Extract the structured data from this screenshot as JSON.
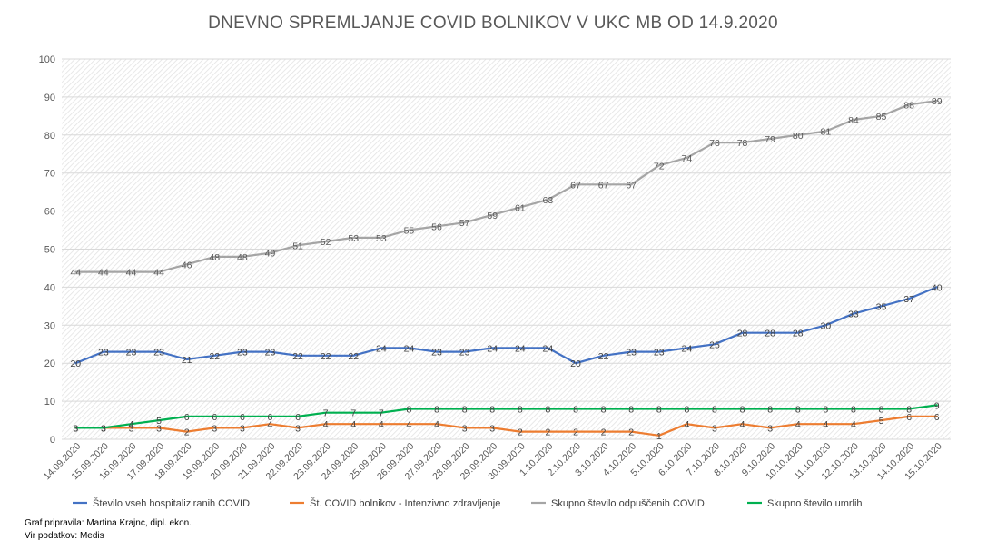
{
  "chart_data": {
    "type": "line",
    "title": "DNEVNO SPREMLJANJE COVID BOLNIKOV V UKC MB OD 14.9.2020",
    "xlabel": "",
    "ylabel": "",
    "ylim": [
      0,
      100
    ],
    "yticks": [
      0,
      10,
      20,
      30,
      40,
      50,
      60,
      70,
      80,
      90,
      100
    ],
    "grid": true,
    "legend_position": "bottom",
    "categories": [
      "14.09.2020",
      "15.09.2020",
      "16.09.2020",
      "17.09.2020",
      "18.09.2020",
      "19.09.2020",
      "20.09.2020",
      "21.09.2020",
      "22.09.2020",
      "23.09.2020",
      "24.09.2020",
      "25.09.2020",
      "26.09.2020",
      "27.09.2020",
      "28.09.2020",
      "29.09.2020",
      "30.09.2020",
      "1.10.2020",
      "2.10.2020",
      "3.10.2020",
      "4.10.2020",
      "5.10.2020",
      "6.10.2020",
      "7.10.2020",
      "8.10.2020",
      "9.10.2020",
      "10.10.2020",
      "11.10.2020",
      "12.10.2020",
      "13.10.2020",
      "14.10.2020",
      "15.10.2020"
    ],
    "series": [
      {
        "name": "Število vseh hospitaliziranih COVID",
        "color": "#4472c4",
        "values": [
          20,
          23,
          23,
          23,
          21,
          22,
          23,
          23,
          22,
          22,
          22,
          24,
          24,
          23,
          23,
          24,
          24,
          24,
          20,
          22,
          23,
          23,
          24,
          25,
          28,
          28,
          28,
          30,
          33,
          35,
          37,
          40
        ]
      },
      {
        "name": "Št. COVID bolnikov - Intenzivno zdravljenje",
        "color": "#ed7d31",
        "values": [
          3,
          3,
          3,
          3,
          2,
          3,
          3,
          4,
          3,
          4,
          4,
          4,
          4,
          4,
          3,
          3,
          2,
          2,
          2,
          2,
          2,
          1,
          4,
          3,
          4,
          3,
          4,
          4,
          4,
          5,
          6,
          6
        ]
      },
      {
        "name": "Skupno število odpuščenih COVID",
        "color": "#a5a5a5",
        "values": [
          44,
          44,
          44,
          44,
          46,
          48,
          48,
          49,
          51,
          52,
          53,
          53,
          55,
          56,
          57,
          59,
          61,
          63,
          67,
          67,
          67,
          72,
          74,
          78,
          78,
          79,
          80,
          81,
          84,
          85,
          88,
          89
        ]
      },
      {
        "name": "Skupno število umrlih",
        "color": "#00b050",
        "values": [
          3,
          3,
          4,
          5,
          6,
          6,
          6,
          6,
          6,
          7,
          7,
          7,
          8,
          8,
          8,
          8,
          8,
          8,
          8,
          8,
          8,
          8,
          8,
          8,
          8,
          8,
          8,
          8,
          8,
          8,
          8,
          9
        ]
      }
    ]
  },
  "credits": {
    "line1": "Graf pripravila: Martina Krajnc, dipl. ekon.",
    "line2": "Vir podatkov: Medis"
  }
}
